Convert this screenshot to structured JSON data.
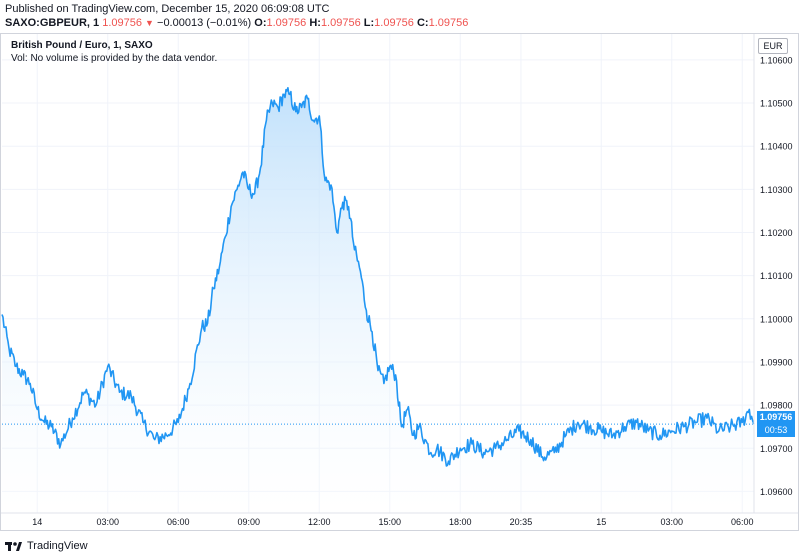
{
  "header": {
    "published": "Published on TradingView.com, December 15, 2020 06:09:08 UTC",
    "symbol": "SAXO:GBPEUR, 1",
    "last": "1.09756",
    "change": "−0.00013 (−0.01%)",
    "o_label": "O:",
    "o_value": "1.09756",
    "h_label": "H:",
    "h_value": "1.09756",
    "l_label": "L:",
    "l_value": "1.09756",
    "c_label": "C:",
    "c_value": "1.09756"
  },
  "legend": {
    "title": "British Pound / Euro, 1, SAXO",
    "volume_note": "Vol: No volume is provided by the data vendor."
  },
  "currency_button": "EUR",
  "price_tag": "1.09756",
  "time_tag": "00:53",
  "footer": {
    "brand": "TradingView"
  },
  "colors": {
    "line": "#2196f3",
    "fill_top": "#bbdefb",
    "fill_bottom": "#ffffff",
    "change_down": "#ef5350",
    "grid": "#f0f3fa"
  },
  "chart_data": {
    "type": "area",
    "yticks": [
      "1.10600",
      "1.10500",
      "1.10400",
      "1.10300",
      "1.10200",
      "1.10100",
      "1.10000",
      "1.09900",
      "1.09800",
      "1.09700",
      "1.09600"
    ],
    "xticks": [
      "14",
      "03:00",
      "06:00",
      "09:00",
      "12:00",
      "15:00",
      "18:00",
      "20:35",
      "15",
      "03:00",
      "06:00"
    ],
    "xtick_hours": [
      0,
      3,
      6,
      9,
      12,
      15,
      18,
      20.583,
      24,
      27,
      30
    ],
    "ylim": [
      1.0955,
      1.1066
    ],
    "xlim": [
      -1.5,
      30.5
    ],
    "grid": true,
    "series": [
      {
        "x": [
          -1.5,
          -1.2,
          -0.9,
          -0.6,
          -0.3,
          0,
          0.3,
          0.6,
          1,
          1.5,
          2,
          2.5,
          3,
          3.5,
          4,
          4.5,
          5,
          5.5,
          6,
          6.5,
          7,
          7.25,
          7.5,
          7.75,
          8,
          8.25,
          8.5,
          8.75,
          9,
          9.25,
          9.5,
          9.75,
          10,
          10.25,
          10.5,
          10.75,
          11,
          11.25,
          11.5,
          11.75,
          12,
          12.25,
          12.5,
          12.75,
          13,
          13.25,
          13.5,
          13.75,
          14,
          14.25,
          14.5,
          14.75,
          15,
          15.25,
          15.5,
          15.75,
          16,
          16.25,
          16.5,
          16.75,
          17,
          17.5,
          18,
          18.5,
          19,
          19.5,
          20,
          20.5,
          21,
          21.5,
          22,
          22.5,
          23,
          23.5,
          24,
          24.5,
          25,
          25.5,
          26,
          26.5,
          27,
          27.5,
          28,
          28.5,
          29,
          29.5,
          30,
          30.3,
          30.5
        ],
        "y": [
          1.1001,
          1.0993,
          1.0989,
          1.0987,
          1.0985,
          1.0979,
          1.0976,
          1.0975,
          1.0971,
          1.0977,
          1.0983,
          1.098,
          1.0989,
          1.0983,
          1.0982,
          1.0976,
          1.0972,
          1.0973,
          1.0976,
          1.0985,
          1.0998,
          1.0999,
          1.1007,
          1.1012,
          1.1019,
          1.1026,
          1.103,
          1.1034,
          1.103,
          1.1029,
          1.1035,
          1.1046,
          1.105,
          1.1049,
          1.1052,
          1.1052,
          1.1048,
          1.1049,
          1.1051,
          1.1046,
          1.1047,
          1.1032,
          1.1031,
          1.102,
          1.1027,
          1.1026,
          1.1016,
          1.1011,
          1.1002,
          1.0997,
          1.0988,
          1.0985,
          1.0989,
          1.0987,
          1.0975,
          1.0979,
          1.0973,
          1.0975,
          1.0972,
          1.0969,
          1.097,
          1.0967,
          1.097,
          1.0971,
          1.0969,
          1.097,
          1.0972,
          1.0974,
          1.0972,
          1.0968,
          1.0969,
          1.0973,
          1.0976,
          1.0975,
          1.0974,
          1.0973,
          1.0975,
          1.0976,
          1.0974,
          1.0973,
          1.0974,
          1.0975,
          1.0976,
          1.0977,
          1.0974,
          1.0975,
          1.0976,
          1.0979,
          1.09756
        ]
      }
    ],
    "last_value": 1.09756
  }
}
